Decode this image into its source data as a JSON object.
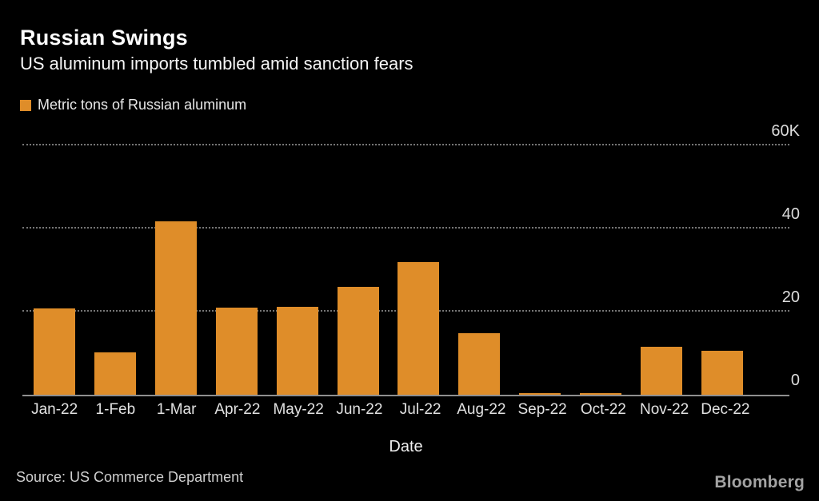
{
  "header": {
    "title": "Russian Swings",
    "subtitle": "US aluminum imports tumbled amid sanction fears"
  },
  "legend": {
    "label": "Metric tons of Russian aluminum",
    "swatch_color": "#DF8D29"
  },
  "chart_data": {
    "type": "bar",
    "title": "Russian Swings",
    "subtitle": "US aluminum imports tumbled amid sanction fears",
    "series_label": "Metric tons of Russian aluminum",
    "categories": [
      "Jan-22",
      "1-Feb",
      "1-Mar",
      "Apr-22",
      "May-22",
      "Jun-22",
      "Jul-22",
      "Aug-22",
      "Sep-22",
      "Oct-22",
      "Nov-22",
      "Dec-22"
    ],
    "values": [
      20800,
      10200,
      41700,
      21000,
      21100,
      26000,
      31900,
      14800,
      400,
      400,
      11500,
      10600
    ],
    "xlabel": "Date",
    "ylabel": "",
    "y_ticks": [
      {
        "value": 0,
        "label": "0"
      },
      {
        "value": 20000,
        "label": "20"
      },
      {
        "value": 40000,
        "label": "40"
      },
      {
        "value": 60000,
        "label": "60K"
      }
    ],
    "ylim": [
      0,
      63500
    ],
    "grid": "horizontal-dotted",
    "legend_position": "top-left",
    "tick_label_position": "right",
    "bar_color": "#DF8D29",
    "background_color": "#000000"
  },
  "footer": {
    "source": "Source:  US Commerce Department",
    "brand": "Bloomberg"
  }
}
